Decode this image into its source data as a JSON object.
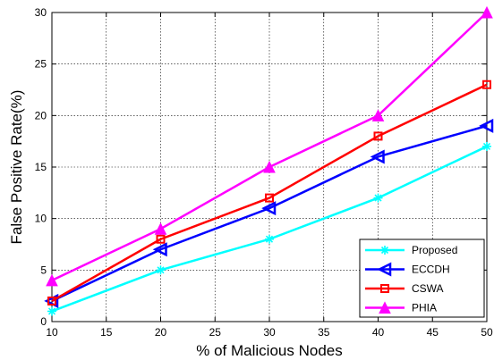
{
  "chart_data": {
    "type": "line",
    "xlabel": "% of Malicious Nodes",
    "ylabel": "False Positive Rate(%)",
    "xlim": [
      10,
      50
    ],
    "ylim": [
      0,
      30
    ],
    "xticks": [
      10,
      15,
      20,
      25,
      30,
      35,
      40,
      45,
      50
    ],
    "yticks": [
      0,
      5,
      10,
      15,
      20,
      25,
      30
    ],
    "grid": true,
    "legend_position": "bottom-right",
    "x": [
      10,
      20,
      30,
      40,
      50
    ],
    "series": [
      {
        "name": "Proposed",
        "values": [
          1,
          5,
          8,
          12,
          17
        ],
        "color": "#00ffff",
        "marker": "star"
      },
      {
        "name": "ECCDH",
        "values": [
          2,
          7,
          11,
          16,
          19
        ],
        "color": "#0000ff",
        "marker": "triangle-left"
      },
      {
        "name": "CSWA",
        "values": [
          2,
          8,
          12,
          18,
          23
        ],
        "color": "#ff0000",
        "marker": "square"
      },
      {
        "name": "PHIA",
        "values": [
          4,
          9,
          15,
          20,
          30
        ],
        "color": "#ff00ff",
        "marker": "triangle-up"
      }
    ]
  }
}
